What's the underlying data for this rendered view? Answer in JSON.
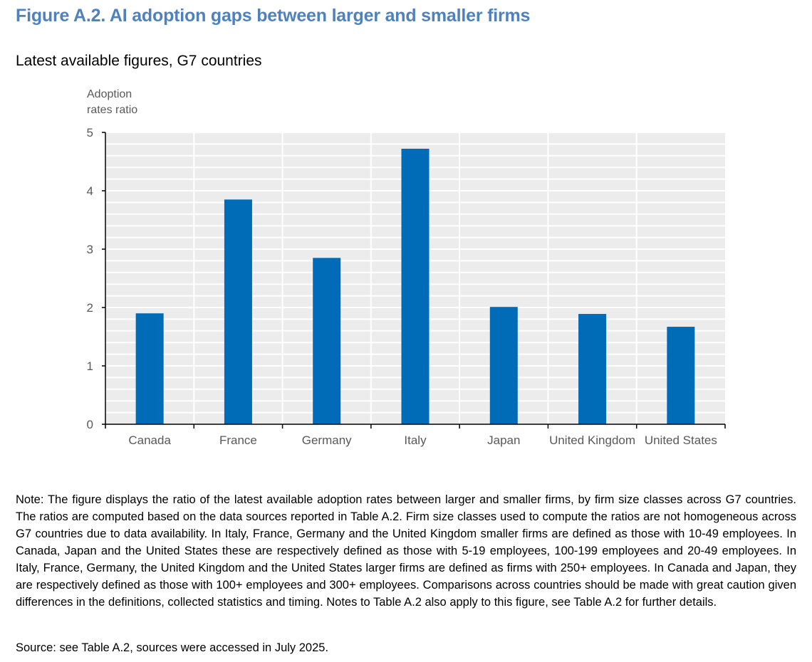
{
  "figure": {
    "title": "Figure A.2. AI adoption gaps between larger and smaller firms",
    "subtitle": "Latest available figures, G7 countries",
    "note": "Note: The figure displays the ratio of the latest available adoption rates between larger and smaller firms, by firm size classes across G7 countries. The ratios are computed based on the data sources reported in Table A.2. Firm size classes used to compute the ratios are not homogeneous across G7 countries due to data availability. In Italy, France, Germany and the United Kingdom smaller firms are defined as those with 10-49 employees. In Canada, Japan and the United States these are respectively defined as those with 5-19 employees, 100-199 employees and 20-49 employees. In Italy, France, Germany, the United Kingdom and the United States larger firms are defined as firms with 250+ employees. In Canada and Japan, they are respectively defined as those with 100+ employees and 300+ employees. Comparisons across countries should be made with great caution given differences in the definitions, collected statistics and timing. Notes to Table A.2 also apply to this figure, see Table A.2 for further details.",
    "source": "Source: see Table A.2, sources were accessed in July 2025."
  },
  "colors": {
    "title": "#4f81bd",
    "bar": "#006bb6",
    "plot_background": "#ececec",
    "gridline": "#ffffff",
    "axis": "#000000",
    "tick_text": "#595959"
  },
  "chart_data": {
    "type": "bar",
    "ylabel_lines": [
      "Adoption",
      "rates ratio"
    ],
    "categories": [
      "Canada",
      "France",
      "Germany",
      "Italy",
      "Japan",
      "United Kingdom",
      "United States"
    ],
    "values": [
      1.9,
      3.85,
      2.85,
      4.72,
      2.01,
      1.89,
      1.67
    ],
    "ylim": [
      0,
      5
    ],
    "yticks": [
      "0",
      "1",
      "2",
      "3",
      "4",
      "5"
    ],
    "minor_gridline_step": 0.2,
    "grid": true,
    "legend": "none"
  }
}
